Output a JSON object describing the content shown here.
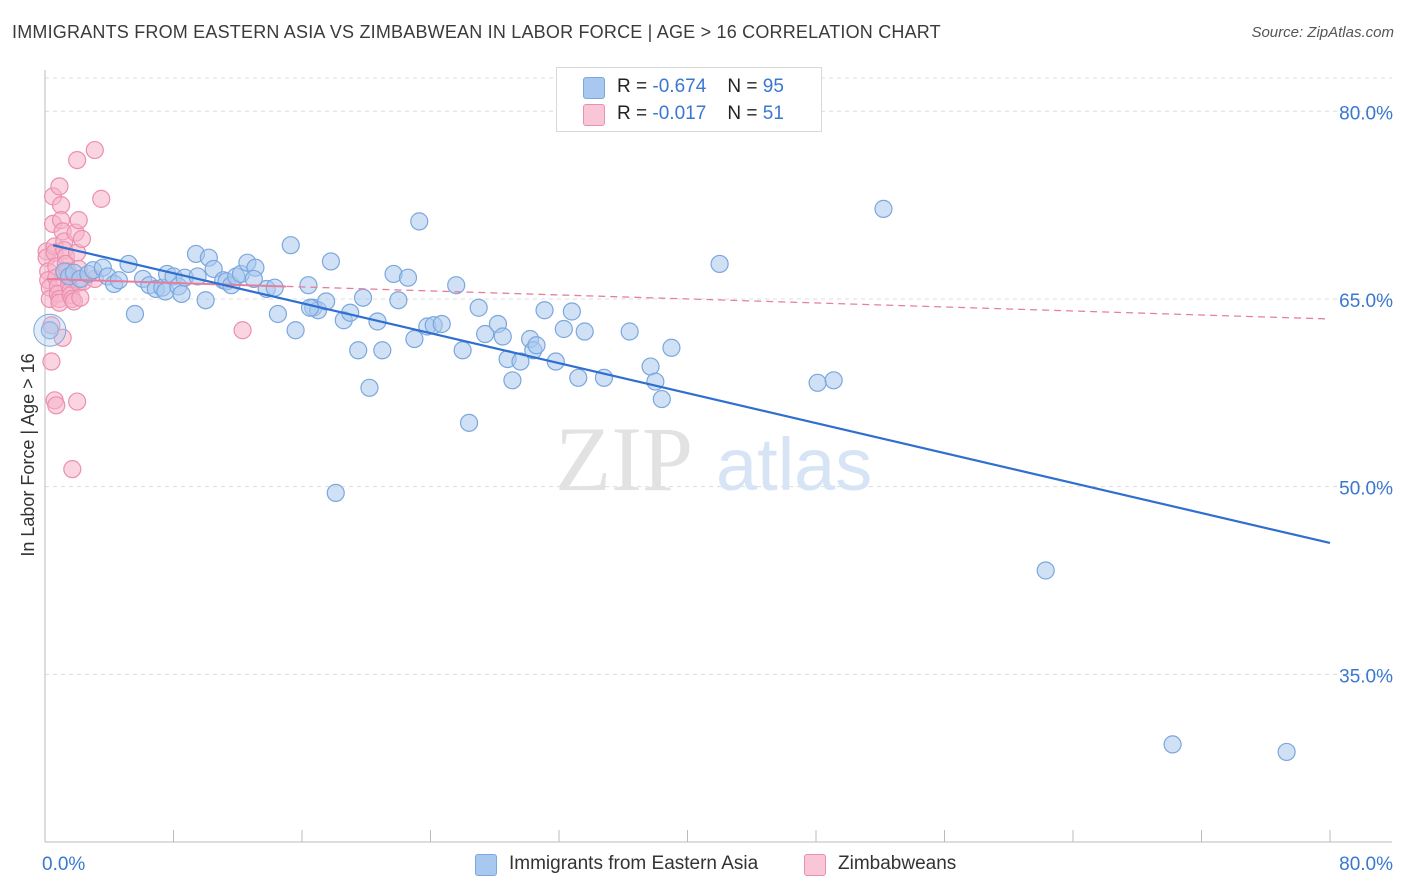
{
  "header": {
    "title": "IMMIGRANTS FROM EASTERN ASIA VS ZIMBABWEAN IN LABOR FORCE | AGE > 16 CORRELATION CHART",
    "source": "Source: ZipAtlas.com"
  },
  "legend": {
    "series1": {
      "r_label": "R =",
      "r_value": "-0.674",
      "n_label": "N =",
      "n_value": "95"
    },
    "series2": {
      "r_label": "R =",
      "r_value": "-0.017",
      "n_label": "N =",
      "n_value": "51"
    }
  },
  "bottom_legend": {
    "series1_label": "Immigrants from Eastern Asia",
    "series2_label": "Zimbabweans"
  },
  "watermark": {
    "zip": "ZIP",
    "atlas": "atlas"
  },
  "colors": {
    "blue_fill": "#a9c8ef",
    "blue_stroke": "#7aa7dd",
    "blue_line": "#2f6fcf",
    "pink_fill": "#f5b3c8",
    "pink_stroke": "#ec8fae",
    "pink_line": "#e57fa0",
    "tick_label": "#3a78d0",
    "grid": "#dcdcdc"
  },
  "chart_data": {
    "type": "scatter",
    "title": "IMMIGRANTS FROM EASTERN ASIA VS ZIMBABWEAN IN LABOR FORCE | AGE > 16 CORRELATION CHART",
    "xlabel": "",
    "ylabel": "In Labor Force | Age > 16",
    "xlim": [
      0,
      80
    ],
    "ylim": [
      21.6,
      83.3
    ],
    "x_tick_labels": [
      {
        "value": 0,
        "label": "0.0%"
      },
      {
        "value": 80,
        "label": "80.0%"
      }
    ],
    "y_tick_labels": [
      {
        "value": 80,
        "label": "80.0%"
      },
      {
        "value": 65,
        "label": "65.0%"
      },
      {
        "value": 50,
        "label": "50.0%"
      },
      {
        "value": 35,
        "label": "35.0%"
      }
    ],
    "grid": true,
    "legend_position": "top-center",
    "series": [
      {
        "name": "Immigrants from Eastern Asia",
        "r": -0.674,
        "n": 95,
        "trend": {
          "x": [
            0.5,
            80
          ],
          "y": [
            69.3,
            45.5
          ]
        },
        "points": [
          [
            0.3,
            62.5
          ],
          [
            1.2,
            67.2
          ],
          [
            1.5,
            66.8
          ],
          [
            1.8,
            67.1
          ],
          [
            2.2,
            66.6
          ],
          [
            2.7,
            67.0
          ],
          [
            3.0,
            67.3
          ],
          [
            3.6,
            67.5
          ],
          [
            3.9,
            66.8
          ],
          [
            4.3,
            66.2
          ],
          [
            4.6,
            66.5
          ],
          [
            5.2,
            67.8
          ],
          [
            5.6,
            63.8
          ],
          [
            6.1,
            66.6
          ],
          [
            6.5,
            66.1
          ],
          [
            6.9,
            65.8
          ],
          [
            7.3,
            65.9
          ],
          [
            7.5,
            65.6
          ],
          [
            7.6,
            67.0
          ],
          [
            8.0,
            66.8
          ],
          [
            8.3,
            66.0
          ],
          [
            8.5,
            65.4
          ],
          [
            8.7,
            66.7
          ],
          [
            9.4,
            68.6
          ],
          [
            9.5,
            66.8
          ],
          [
            10.0,
            64.9
          ],
          [
            10.2,
            68.3
          ],
          [
            10.5,
            67.4
          ],
          [
            11.1,
            66.5
          ],
          [
            11.3,
            66.4
          ],
          [
            11.6,
            66.1
          ],
          [
            11.9,
            66.8
          ],
          [
            12.2,
            67.0
          ],
          [
            12.6,
            67.9
          ],
          [
            13.1,
            67.5
          ],
          [
            13.8,
            65.8
          ],
          [
            13.0,
            66.6
          ],
          [
            14.3,
            65.9
          ],
          [
            14.5,
            63.8
          ],
          [
            15.3,
            69.3
          ],
          [
            15.6,
            62.5
          ],
          [
            16.4,
            66.1
          ],
          [
            16.7,
            64.3
          ],
          [
            17.0,
            64.1
          ],
          [
            17.5,
            64.8
          ],
          [
            17.8,
            68.0
          ],
          [
            18.6,
            63.3
          ],
          [
            19.0,
            63.9
          ],
          [
            19.5,
            60.9
          ],
          [
            19.8,
            65.1
          ],
          [
            20.2,
            57.9
          ],
          [
            20.7,
            63.2
          ],
          [
            21.0,
            60.9
          ],
          [
            21.7,
            67.0
          ],
          [
            22.0,
            64.9
          ],
          [
            22.6,
            66.7
          ],
          [
            23.0,
            61.8
          ],
          [
            23.3,
            71.2
          ],
          [
            23.8,
            62.8
          ],
          [
            24.2,
            62.9
          ],
          [
            24.7,
            63.0
          ],
          [
            25.6,
            66.1
          ],
          [
            26.0,
            60.9
          ],
          [
            26.4,
            55.1
          ],
          [
            27.0,
            64.3
          ],
          [
            27.4,
            62.2
          ],
          [
            28.2,
            63.0
          ],
          [
            28.5,
            62.0
          ],
          [
            28.8,
            60.2
          ],
          [
            29.1,
            58.5
          ],
          [
            29.6,
            60.0
          ],
          [
            30.2,
            61.8
          ],
          [
            30.4,
            60.9
          ],
          [
            30.6,
            61.3
          ],
          [
            31.1,
            64.1
          ],
          [
            31.8,
            60.0
          ],
          [
            32.3,
            62.6
          ],
          [
            32.8,
            64.0
          ],
          [
            33.2,
            58.7
          ],
          [
            33.6,
            62.4
          ],
          [
            34.8,
            58.7
          ],
          [
            36.4,
            62.4
          ],
          [
            37.7,
            59.6
          ],
          [
            38.0,
            58.4
          ],
          [
            38.4,
            57.0
          ],
          [
            39.0,
            61.1
          ],
          [
            42.0,
            67.8
          ],
          [
            48.1,
            58.3
          ],
          [
            49.1,
            58.5
          ],
          [
            52.2,
            72.2
          ],
          [
            16.5,
            64.3
          ],
          [
            18.1,
            49.5
          ],
          [
            62.3,
            43.3
          ],
          [
            70.2,
            29.4
          ],
          [
            77.3,
            28.8
          ]
        ]
      },
      {
        "name": "Zimbabweans",
        "r": -0.017,
        "n": 51,
        "trend": {
          "x": [
            0.1,
            80
          ],
          "y": [
            66.6,
            63.4
          ]
        },
        "points": [
          [
            0.1,
            68.8
          ],
          [
            0.1,
            68.3
          ],
          [
            0.2,
            67.2
          ],
          [
            0.2,
            66.5
          ],
          [
            0.3,
            65.9
          ],
          [
            0.3,
            65.0
          ],
          [
            0.4,
            62.9
          ],
          [
            0.4,
            60.0
          ],
          [
            0.5,
            73.2
          ],
          [
            0.5,
            71.0
          ],
          [
            0.6,
            69.2
          ],
          [
            0.6,
            68.7
          ],
          [
            0.7,
            67.6
          ],
          [
            0.7,
            66.7
          ],
          [
            0.8,
            66.0
          ],
          [
            0.8,
            65.4
          ],
          [
            0.9,
            65.0
          ],
          [
            0.9,
            64.7
          ],
          [
            0.6,
            56.9
          ],
          [
            0.7,
            56.5
          ],
          [
            0.9,
            74.0
          ],
          [
            1.0,
            72.5
          ],
          [
            1.0,
            71.3
          ],
          [
            1.1,
            70.4
          ],
          [
            1.2,
            69.6
          ],
          [
            1.2,
            68.9
          ],
          [
            1.3,
            68.4
          ],
          [
            1.3,
            67.8
          ],
          [
            1.4,
            67.2
          ],
          [
            1.5,
            66.6
          ],
          [
            1.5,
            66.1
          ],
          [
            1.6,
            65.7
          ],
          [
            1.6,
            65.3
          ],
          [
            1.7,
            65.0
          ],
          [
            1.8,
            64.8
          ],
          [
            1.1,
            61.9
          ],
          [
            1.7,
            51.4
          ],
          [
            1.9,
            70.3
          ],
          [
            2.0,
            68.7
          ],
          [
            2.1,
            67.4
          ],
          [
            2.1,
            66.3
          ],
          [
            2.2,
            65.1
          ],
          [
            2.0,
            56.8
          ],
          [
            2.0,
            76.1
          ],
          [
            2.1,
            71.3
          ],
          [
            2.3,
            69.8
          ],
          [
            2.4,
            66.4
          ],
          [
            3.1,
            66.6
          ],
          [
            3.1,
            76.9
          ],
          [
            3.5,
            73.0
          ],
          [
            12.3,
            62.5
          ]
        ]
      }
    ]
  }
}
